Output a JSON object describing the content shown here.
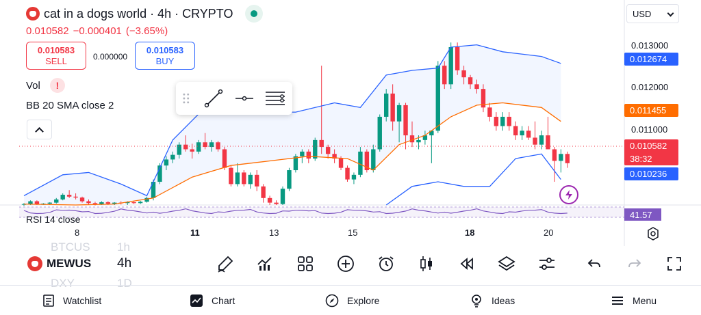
{
  "header": {
    "title": "cat in a dogs world · 4h · CRYPTO",
    "price": "0.010582",
    "change": "−0.000401",
    "change_pct": "(−3.65%)",
    "currency": "USD"
  },
  "trade": {
    "sell_price": "0.010583",
    "sell_label": "SELL",
    "spread": "0.000000",
    "buy_price": "0.010583",
    "buy_label": "BUY"
  },
  "indicators": {
    "vol_label": "Vol",
    "bb_label": "BB 20 SMA close 2",
    "rsi_label": "RSI 14 close",
    "rsi_value": "41.57"
  },
  "price_axis": {
    "ticks": [
      "0.013000",
      "0.012000",
      "0.011000"
    ],
    "bb_upper": "0.012674",
    "bb_basis": "0.011455",
    "bb_lower": "0.010236",
    "current_price": "0.010582",
    "countdown": "38:32"
  },
  "time_axis": [
    {
      "label": "8",
      "bold": false
    },
    {
      "label": "11",
      "bold": true
    },
    {
      "label": "13",
      "bold": false
    },
    {
      "label": "15",
      "bold": false
    },
    {
      "label": "18",
      "bold": true
    },
    {
      "label": "20",
      "bold": false
    }
  ],
  "toolbar": {
    "symbol": "MEWUS",
    "timeframe": "4h",
    "ghost_symbol_prev": "BTCUS",
    "ghost_tf_prev": "1h",
    "ghost_symbol_next": "DXY",
    "ghost_tf_next": "1D",
    "icons": [
      "pencil-icon",
      "indicators-icon",
      "layouts-icon",
      "add-icon",
      "alert-clock-icon",
      "candle-style-icon",
      "replay-icon",
      "layers-icon",
      "settings-sliders-icon",
      "undo-icon",
      "redo-icon",
      "fullscreen-icon"
    ]
  },
  "nav": {
    "watchlist": "Watchlist",
    "chart": "Chart",
    "explore": "Explore",
    "ideas": "Ideas",
    "menu": "Menu"
  },
  "colors": {
    "up": "#089981",
    "down": "#f23645",
    "bb_upper": "#2962ff",
    "bb_basis": "#ff6d00",
    "rsi": "#7e57c2"
  },
  "chart_data": {
    "type": "candlestick",
    "y_range": [
      0.0097,
      0.01335
    ],
    "candles": [
      [
        0.00972,
        0.00974,
        0.00968,
        0.00972
      ],
      [
        0.00972,
        0.0098,
        0.0097,
        0.00978
      ],
      [
        0.00978,
        0.0098,
        0.0097,
        0.00972
      ],
      [
        0.00972,
        0.00974,
        0.0097,
        0.00973
      ],
      [
        0.00973,
        0.00976,
        0.0097,
        0.00975
      ],
      [
        0.00975,
        0.00985,
        0.00973,
        0.00982
      ],
      [
        0.00982,
        0.00995,
        0.0098,
        0.00992
      ],
      [
        0.00992,
        0.01002,
        0.00985,
        0.00988
      ],
      [
        0.00988,
        0.00995,
        0.00982,
        0.00986
      ],
      [
        0.00986,
        0.00988,
        0.00975,
        0.00978
      ],
      [
        0.00978,
        0.00982,
        0.0097,
        0.00974
      ],
      [
        0.00974,
        0.00977,
        0.00969,
        0.00972
      ],
      [
        0.00972,
        0.00978,
        0.0097,
        0.00976
      ],
      [
        0.00976,
        0.00978,
        0.0097,
        0.00973
      ],
      [
        0.00973,
        0.00976,
        0.0097,
        0.00975
      ],
      [
        0.00975,
        0.00978,
        0.00971,
        0.00974
      ],
      [
        0.00974,
        0.00978,
        0.0097,
        0.00976
      ],
      [
        0.00976,
        0.00978,
        0.00972,
        0.00974
      ],
      [
        0.00974,
        0.00979,
        0.00972,
        0.00977
      ],
      [
        0.00977,
        0.00988,
        0.00975,
        0.00985
      ],
      [
        0.00985,
        0.01025,
        0.0098,
        0.0102
      ],
      [
        0.0102,
        0.0106,
        0.01015,
        0.01055
      ],
      [
        0.01055,
        0.01075,
        0.01045,
        0.01068
      ],
      [
        0.01068,
        0.01085,
        0.0106,
        0.01078
      ],
      [
        0.01078,
        0.01105,
        0.0107,
        0.011
      ],
      [
        0.011,
        0.0112,
        0.01085,
        0.0109
      ],
      [
        0.0109,
        0.01102,
        0.0107,
        0.01085
      ],
      [
        0.01085,
        0.0111,
        0.0108,
        0.01105
      ],
      [
        0.01105,
        0.01125,
        0.0109,
        0.01095
      ],
      [
        0.01095,
        0.0111,
        0.01085,
        0.01105
      ],
      [
        0.01105,
        0.01108,
        0.01085,
        0.0109
      ],
      [
        0.0109,
        0.01095,
        0.01045,
        0.0105
      ],
      [
        0.0105,
        0.01055,
        0.0101,
        0.01015
      ],
      [
        0.01015,
        0.0106,
        0.0101,
        0.0104
      ],
      [
        0.0104,
        0.01045,
        0.0101,
        0.01015
      ],
      [
        0.01015,
        0.0104,
        0.01005,
        0.01035
      ],
      [
        0.01035,
        0.01045,
        0.01,
        0.0101
      ],
      [
        0.0101,
        0.01015,
        0.00975,
        0.00985
      ],
      [
        0.00985,
        0.0099,
        0.0097,
        0.00975
      ],
      [
        0.00975,
        0.0098,
        0.0097,
        0.00972
      ],
      [
        0.00972,
        0.0101,
        0.0097,
        0.01005
      ],
      [
        0.01005,
        0.0105,
        0.01,
        0.01045
      ],
      [
        0.01045,
        0.0108,
        0.0104,
        0.01075
      ],
      [
        0.01075,
        0.0109,
        0.0106,
        0.01085
      ],
      [
        0.01085,
        0.0109,
        0.0106,
        0.0107
      ],
      [
        0.0107,
        0.01115,
        0.01065,
        0.0111
      ],
      [
        0.0111,
        0.0127,
        0.0108,
        0.01095
      ],
      [
        0.01095,
        0.011,
        0.0107,
        0.0108
      ],
      [
        0.0108,
        0.0109,
        0.0106,
        0.0107
      ],
      [
        0.0107,
        0.01075,
        0.01045,
        0.0105
      ],
      [
        0.0105,
        0.01055,
        0.0102,
        0.01025
      ],
      [
        0.01025,
        0.0104,
        0.01015,
        0.01035
      ],
      [
        0.01035,
        0.01095,
        0.0103,
        0.01085
      ],
      [
        0.01085,
        0.0109,
        0.0104,
        0.01045
      ],
      [
        0.01045,
        0.011,
        0.0104,
        0.0109
      ],
      [
        0.0109,
        0.01165,
        0.01085,
        0.0116
      ],
      [
        0.0116,
        0.0122,
        0.0115,
        0.0121
      ],
      [
        0.0121,
        0.0123,
        0.0113,
        0.0115
      ],
      [
        0.0115,
        0.0119,
        0.01105,
        0.01185
      ],
      [
        0.01185,
        0.0119,
        0.0109,
        0.0112
      ],
      [
        0.0112,
        0.0115,
        0.01095,
        0.01105
      ],
      [
        0.01105,
        0.0112,
        0.0109,
        0.0111
      ],
      [
        0.0111,
        0.0113,
        0.011,
        0.0112
      ],
      [
        0.0112,
        0.0113,
        0.0106,
        0.0113
      ],
      [
        0.0113,
        0.0128,
        0.01125,
        0.0127
      ],
      [
        0.0127,
        0.0128,
        0.0122,
        0.0123
      ],
      [
        0.0123,
        0.0132,
        0.0122,
        0.0131
      ],
      [
        0.0131,
        0.0132,
        0.0125,
        0.0126
      ],
      [
        0.0126,
        0.0127,
        0.0123,
        0.01245
      ],
      [
        0.01245,
        0.0125,
        0.0122,
        0.0123
      ],
      [
        0.0123,
        0.0124,
        0.0121,
        0.0122
      ],
      [
        0.0122,
        0.0123,
        0.0117,
        0.0118
      ],
      [
        0.0118,
        0.0119,
        0.0115,
        0.0116
      ],
      [
        0.0116,
        0.0117,
        0.0113,
        0.0114
      ],
      [
        0.0114,
        0.0117,
        0.0113,
        0.0116
      ],
      [
        0.0116,
        0.0117,
        0.0113,
        0.0114
      ],
      [
        0.0114,
        0.0115,
        0.0111,
        0.0112
      ],
      [
        0.0112,
        0.0114,
        0.0111,
        0.0113
      ],
      [
        0.0113,
        0.0114,
        0.0111,
        0.01115
      ],
      [
        0.01115,
        0.0115,
        0.0109,
        0.011
      ],
      [
        0.011,
        0.0113,
        0.0109,
        0.0112
      ],
      [
        0.0112,
        0.0116,
        0.0109,
        0.0109
      ],
      [
        0.0109,
        0.01095,
        0.0102,
        0.01065
      ],
      [
        0.01065,
        0.0109,
        0.0104,
        0.0108
      ],
      [
        0.0108,
        0.01085,
        0.0105,
        0.0106
      ]
    ],
    "bb_upper": [
      [
        0,
        0.0099
      ],
      [
        6,
        0.01035
      ],
      [
        10,
        0.0104
      ],
      [
        15,
        0.01015
      ],
      [
        19,
        0.0099
      ],
      [
        23,
        0.0111
      ],
      [
        28,
        0.0118
      ],
      [
        35,
        0.0117
      ],
      [
        42,
        0.0117
      ],
      [
        48,
        0.0119
      ],
      [
        52,
        0.0118
      ],
      [
        56,
        0.0125
      ],
      [
        60,
        0.0126
      ],
      [
        64,
        0.01265
      ],
      [
        66,
        0.0131
      ],
      [
        70,
        0.01315
      ],
      [
        74,
        0.013
      ],
      [
        80,
        0.0129
      ],
      [
        83,
        0.01275
      ]
    ],
    "bb_basis": [
      [
        0,
        0.00972
      ],
      [
        8,
        0.0097
      ],
      [
        14,
        0.00972
      ],
      [
        20,
        0.00985
      ],
      [
        26,
        0.0103
      ],
      [
        32,
        0.01055
      ],
      [
        38,
        0.01065
      ],
      [
        44,
        0.01075
      ],
      [
        50,
        0.0107
      ],
      [
        54,
        0.01045
      ],
      [
        58,
        0.011
      ],
      [
        62,
        0.0112
      ],
      [
        66,
        0.0116
      ],
      [
        70,
        0.01185
      ],
      [
        74,
        0.0119
      ],
      [
        80,
        0.0118
      ],
      [
        83,
        0.0115
      ]
    ],
    "bb_lower": [
      [
        56,
        0.0097
      ],
      [
        60,
        0.0101
      ],
      [
        64,
        0.0102
      ],
      [
        68,
        0.0101
      ],
      [
        72,
        0.0101
      ],
      [
        76,
        0.0107
      ],
      [
        80,
        0.0108
      ],
      [
        83,
        0.01025
      ]
    ]
  }
}
